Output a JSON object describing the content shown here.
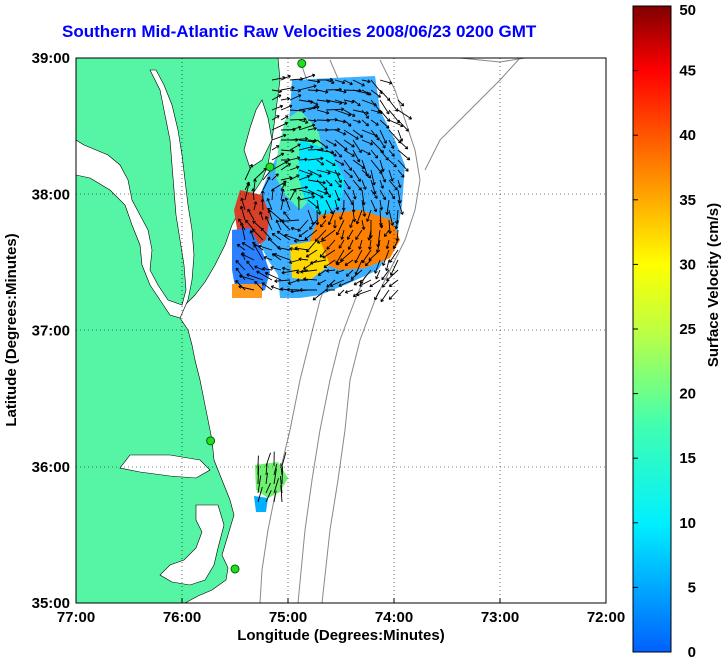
{
  "title": "Southern Mid-Atlantic Raw Velocities 2008/06/23 0200 GMT",
  "map": {
    "xlabel": "Longitude (Degrees:Minutes)",
    "ylabel": "Latitude (Degrees:Minutes)",
    "x_ticks": [
      "77:00",
      "76:00",
      "75:00",
      "74:00",
      "73:00",
      "72:00"
    ],
    "y_ticks": [
      "39:00",
      "38:00",
      "37:00",
      "36:00",
      "35:00"
    ],
    "lon_range": [
      -77,
      -72
    ],
    "lat_range": [
      35,
      39
    ],
    "land_color": "#55f5a5",
    "grid": true
  },
  "colorbar": {
    "label": "Surface Velocity (cm/s)",
    "ticks": [
      "0",
      "5",
      "10",
      "15",
      "20",
      "25",
      "30",
      "35",
      "40",
      "45",
      "50"
    ],
    "range": [
      0,
      50
    ]
  },
  "stations": [
    {
      "lon": -74.87,
      "lat": 38.96
    },
    {
      "lon": -75.17,
      "lat": 38.2
    },
    {
      "lon": -75.73,
      "lat": 36.19
    },
    {
      "lon": -75.5,
      "lat": 35.25
    }
  ]
}
